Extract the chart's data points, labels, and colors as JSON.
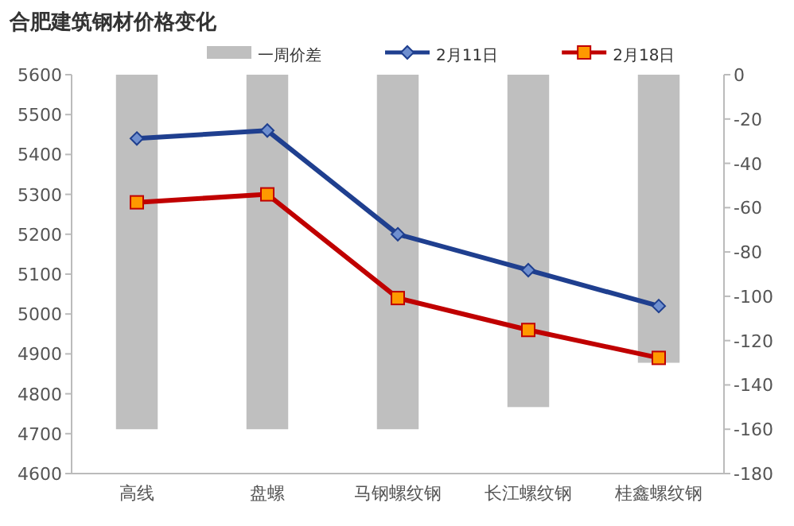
{
  "chart_data": {
    "type": "line",
    "title": "合肥建筑钢材价格变化",
    "categories": [
      "高线",
      "盘螺",
      "马钢螺纹钢",
      "长江螺纹钢",
      "桂鑫螺纹钢"
    ],
    "series": [
      {
        "name": "一周价差",
        "type": "bar",
        "axis": "y2",
        "color": "#bfbfbf",
        "values": [
          -160,
          -160,
          -160,
          -150,
          -130
        ]
      },
      {
        "name": "2月11日",
        "color": "#1f3f8f",
        "marker": "diamond",
        "values": [
          5440,
          5460,
          5200,
          5110,
          5020
        ]
      },
      {
        "name": "2月18日",
        "color": "#c00000",
        "marker": "square",
        "values": [
          5280,
          5300,
          5040,
          4960,
          4890
        ]
      }
    ],
    "ylim": [
      4600,
      5600
    ],
    "yticks": [
      4600,
      4700,
      4800,
      4900,
      5000,
      5100,
      5200,
      5300,
      5400,
      5500,
      5600
    ],
    "y2lim": [
      -180,
      0
    ],
    "y2ticks": [
      -180,
      -160,
      -140,
      -120,
      -100,
      -80,
      -60,
      -40,
      -20,
      0
    ],
    "legend": "top",
    "grid": false
  }
}
